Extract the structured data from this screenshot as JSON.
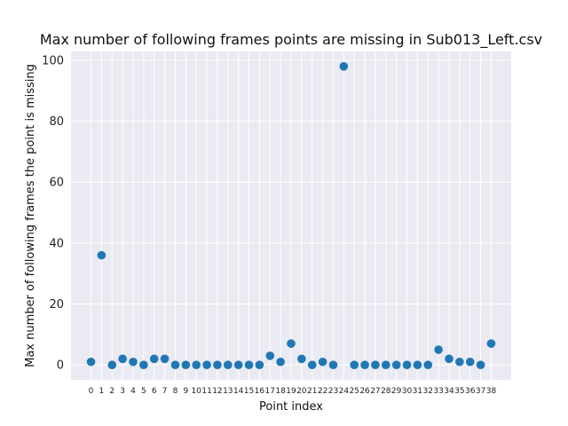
{
  "chart_data": {
    "type": "scatter",
    "title": "Max number of following frames points are missing in Sub013_Left.csv",
    "xlabel": "Point index",
    "ylabel": "Max number of following frames the point is missing",
    "categories": [
      "0",
      "1",
      "2",
      "3",
      "4",
      "5",
      "6",
      "7",
      "8",
      "9",
      "10",
      "11",
      "12",
      "13",
      "14",
      "15",
      "16",
      "17",
      "18",
      "19",
      "20",
      "21",
      "22",
      "23",
      "24",
      "25",
      "26",
      "27",
      "28",
      "29",
      "30",
      "31",
      "32",
      "33",
      "34",
      "35",
      "36",
      "37",
      "38"
    ],
    "values": [
      1,
      36,
      0,
      2,
      1,
      0,
      2,
      2,
      0,
      0,
      0,
      0,
      0,
      0,
      0,
      0,
      0,
      3,
      1,
      7,
      2,
      0,
      1,
      0,
      98,
      0,
      0,
      0,
      0,
      0,
      0,
      0,
      0,
      5,
      2,
      1,
      1,
      0,
      7
    ],
    "ylim": [
      -4.9,
      102.9
    ],
    "yticks": [
      0,
      20,
      40,
      60,
      80,
      100
    ],
    "grid": true,
    "colors": {
      "marker": "#1f77b4",
      "plot_background": "#eaeaf2",
      "grid": "#ffffff"
    }
  }
}
